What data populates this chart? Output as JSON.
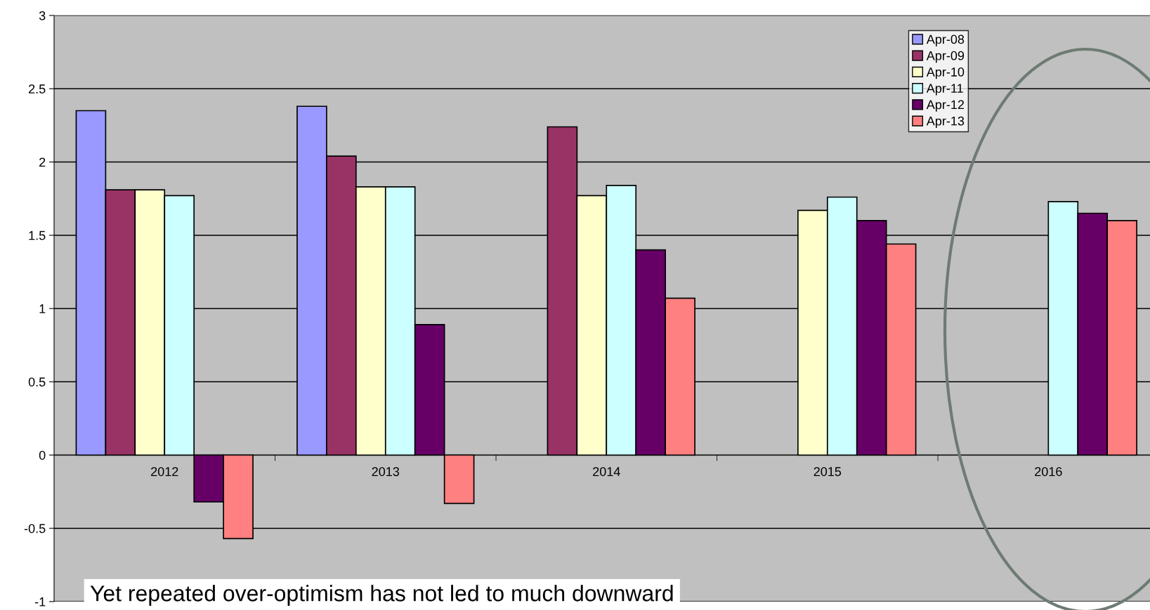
{
  "chart_data": {
    "type": "bar",
    "categories": [
      "2012",
      "2013",
      "2014",
      "2015",
      "2016"
    ],
    "series": [
      {
        "name": "Apr-08",
        "color": "#9999ff",
        "values": [
          2.35,
          2.38,
          null,
          null,
          null
        ]
      },
      {
        "name": "Apr-09",
        "color": "#993366",
        "values": [
          1.81,
          2.04,
          2.24,
          null,
          null
        ]
      },
      {
        "name": "Apr-10",
        "color": "#ffffcc",
        "values": [
          1.81,
          1.83,
          1.77,
          1.67,
          null
        ]
      },
      {
        "name": "Apr-11",
        "color": "#ccffff",
        "values": [
          1.77,
          1.83,
          1.84,
          1.76,
          1.73
        ]
      },
      {
        "name": "Apr-12",
        "color": "#660066",
        "values": [
          -0.32,
          0.89,
          1.4,
          1.6,
          1.65
        ]
      },
      {
        "name": "Apr-13",
        "color": "#ff8080",
        "values": [
          -0.57,
          -0.33,
          1.07,
          1.44,
          1.6
        ]
      }
    ],
    "ylim": [
      -1,
      3
    ],
    "yticks": [
      -1,
      -0.5,
      0,
      0.5,
      1,
      1.5,
      2,
      2.5,
      3
    ],
    "grid": "y",
    "legend": "top right",
    "annotations": [
      "Yet repeated over-optimism has not led to much downward"
    ]
  }
}
